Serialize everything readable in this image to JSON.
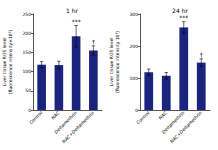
{
  "chart_data": [
    {
      "type": "bar",
      "title": "1 hr",
      "ylabel": "Liver tissue ROS level\n(fluorescence intensity×10³)",
      "categories": [
        "Control",
        "NAC",
        "Deltamethrin",
        "NAC+Deltamethrin"
      ],
      "values": [
        118,
        117,
        192,
        155
      ],
      "errors": [
        8,
        10,
        28,
        12
      ],
      "color": "#1a237e",
      "ylim": [
        0,
        250
      ],
      "yticks": [
        0,
        50,
        100,
        150,
        200,
        250
      ],
      "grid": false,
      "annotations": [
        {
          "text": "***",
          "category": "Deltamethrin"
        },
        {
          "text": "†",
          "category": "NAC+Deltamethrin"
        }
      ]
    },
    {
      "type": "bar",
      "title": "24 hr",
      "ylabel": "Liver tissue ROS level\n(fluorescence intensity 10³)",
      "categories": [
        "Control",
        "NAC",
        "Deltamethrin",
        "NAC+Deltamethrin"
      ],
      "values": [
        118,
        107,
        258,
        148
      ],
      "errors": [
        10,
        10,
        18,
        12
      ],
      "color": "#1a237e",
      "ylim": [
        0,
        300
      ],
      "yticks": [
        0,
        100,
        200,
        300
      ],
      "grid": false,
      "annotations": [
        {
          "text": "***",
          "category": "Deltamethrin"
        },
        {
          "text": "†",
          "category": "NAC+Deltamethrin"
        }
      ]
    }
  ]
}
